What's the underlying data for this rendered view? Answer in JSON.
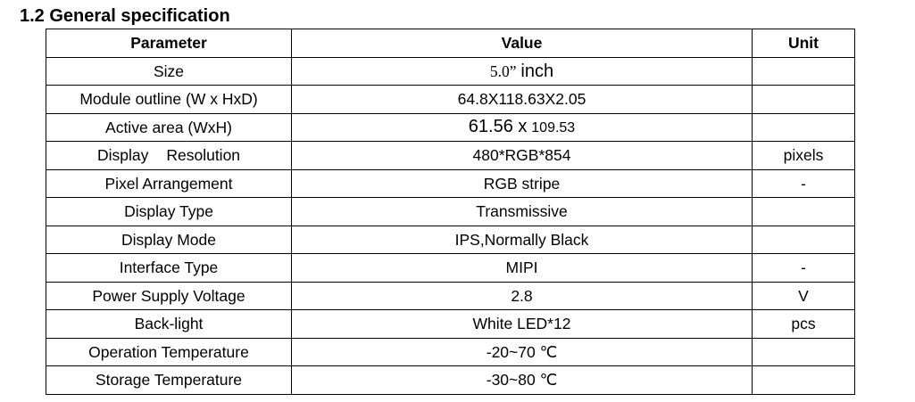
{
  "heading": "1.2 General specification",
  "table": {
    "headers": [
      "Parameter",
      "Value",
      "Unit"
    ],
    "rows": [
      {
        "parameter": "Size",
        "value_part1": "5.0”",
        "value_part2": "inch",
        "unit": ""
      },
      {
        "parameter": "Module outline (W x HxD)",
        "value": "64.8X118.63X2.05",
        "unit": ""
      },
      {
        "parameter": "Active area (WxH)",
        "value_part1": "61.56 x",
        "value_part2": "109.53",
        "unit": ""
      },
      {
        "parameter_part1": "Display",
        "parameter_part2": "Resolution",
        "value": "480*RGB*854",
        "unit": "pixels"
      },
      {
        "parameter": "Pixel Arrangement",
        "value": "RGB stripe",
        "unit": "-"
      },
      {
        "parameter": "Display Type",
        "value": "Transmissive",
        "unit": ""
      },
      {
        "parameter": "Display Mode",
        "value": "IPS,Normally Black",
        "unit": ""
      },
      {
        "parameter": "Interface Type",
        "value": "MIPI",
        "unit": "-"
      },
      {
        "parameter": "Power Supply Voltage",
        "value": "2.8",
        "unit": "V"
      },
      {
        "parameter": "Back-light",
        "value": "White LED*12",
        "unit": "pcs"
      },
      {
        "parameter": "Operation Temperature",
        "value": "-20~70 ℃",
        "unit": ""
      },
      {
        "parameter": "Storage Temperature",
        "value": "-30~80 ℃",
        "unit": ""
      }
    ]
  }
}
